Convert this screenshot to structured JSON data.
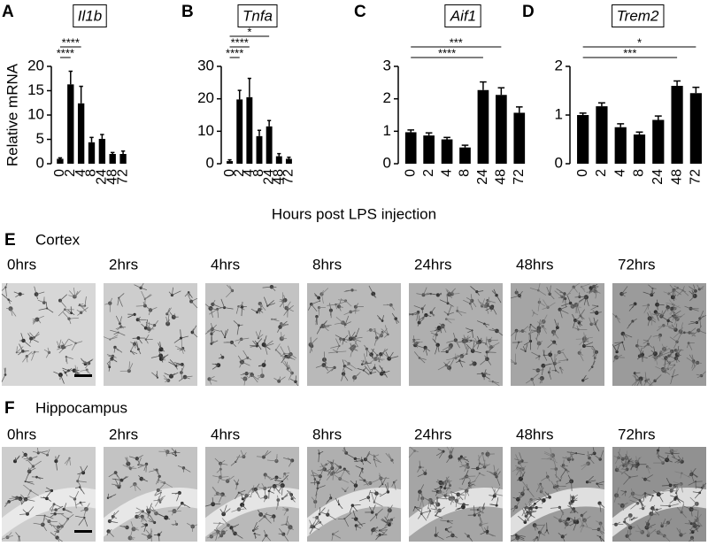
{
  "chart_data": [
    {
      "type": "bar",
      "panel": "A",
      "title": "Il1b",
      "ylabel": "Relative mRNA",
      "categories": [
        "0",
        "2",
        "4",
        "8",
        "24",
        "48",
        "72"
      ],
      "values": [
        1.0,
        16.3,
        12.4,
        4.4,
        5.1,
        2.0,
        2.0
      ],
      "errors": [
        0.2,
        2.7,
        3.5,
        1.0,
        0.9,
        0.3,
        0.6
      ],
      "color": "#000000",
      "ylim": [
        0,
        20
      ],
      "yticks": [
        0,
        5,
        10,
        15,
        20
      ],
      "annotations": [
        {
          "text": "****",
          "from": "0",
          "to": "2"
        },
        {
          "text": "****",
          "from": "0",
          "to": "4"
        }
      ]
    },
    {
      "type": "bar",
      "panel": "B",
      "title": "Tnfa",
      "categories": [
        "0",
        "2",
        "4",
        "8",
        "24",
        "48",
        "72"
      ],
      "values": [
        0.8,
        19.8,
        20.5,
        8.5,
        11.5,
        2.3,
        1.5
      ],
      "errors": [
        0.4,
        2.8,
        5.8,
        1.8,
        1.8,
        0.8,
        0.5
      ],
      "color": "#000000",
      "ylim": [
        0,
        30
      ],
      "yticks": [
        0,
        10,
        20,
        30
      ],
      "annotations": [
        {
          "text": "****",
          "from": "0",
          "to": "2"
        },
        {
          "text": "****",
          "from": "0",
          "to": "4"
        },
        {
          "text": "*",
          "from": "0",
          "to": "24"
        }
      ]
    },
    {
      "type": "bar",
      "panel": "C",
      "title": "Aif1",
      "categories": [
        "0",
        "2",
        "4",
        "8",
        "24",
        "48",
        "72"
      ],
      "values": [
        0.97,
        0.87,
        0.75,
        0.5,
        2.27,
        2.12,
        1.57
      ],
      "errors": [
        0.07,
        0.08,
        0.06,
        0.07,
        0.25,
        0.22,
        0.18
      ],
      "color": "#000000",
      "ylim": [
        0,
        3
      ],
      "yticks": [
        0,
        1,
        2,
        3
      ],
      "annotations": [
        {
          "text": "****",
          "from": "0",
          "to": "24"
        },
        {
          "text": "***",
          "from": "0",
          "to": "48"
        }
      ]
    },
    {
      "type": "bar",
      "panel": "D",
      "title": "Trem2",
      "categories": [
        "0",
        "2",
        "4",
        "8",
        "24",
        "48",
        "72"
      ],
      "values": [
        1.0,
        1.18,
        0.75,
        0.6,
        0.9,
        1.6,
        1.45
      ],
      "errors": [
        0.04,
        0.07,
        0.07,
        0.05,
        0.08,
        0.1,
        0.12
      ],
      "color": "#000000",
      "ylim": [
        0,
        2
      ],
      "yticks": [
        0,
        1,
        2
      ],
      "annotations": [
        {
          "text": "***",
          "from": "0",
          "to": "48"
        },
        {
          "text": "*",
          "from": "0",
          "to": "72"
        }
      ]
    }
  ],
  "common_xlabel": "Hours post LPS injection",
  "micrographs": [
    {
      "panel": "E",
      "title": "Cortex",
      "times": [
        "0hrs",
        "2hrs",
        "4hrs",
        "8hrs",
        "24hrs",
        "48hrs",
        "72hrs"
      ]
    },
    {
      "panel": "F",
      "title": "Hippocampus",
      "times": [
        "0hrs",
        "2hrs",
        "4hrs",
        "8hrs",
        "24hrs",
        "48hrs",
        "72hrs"
      ]
    }
  ]
}
